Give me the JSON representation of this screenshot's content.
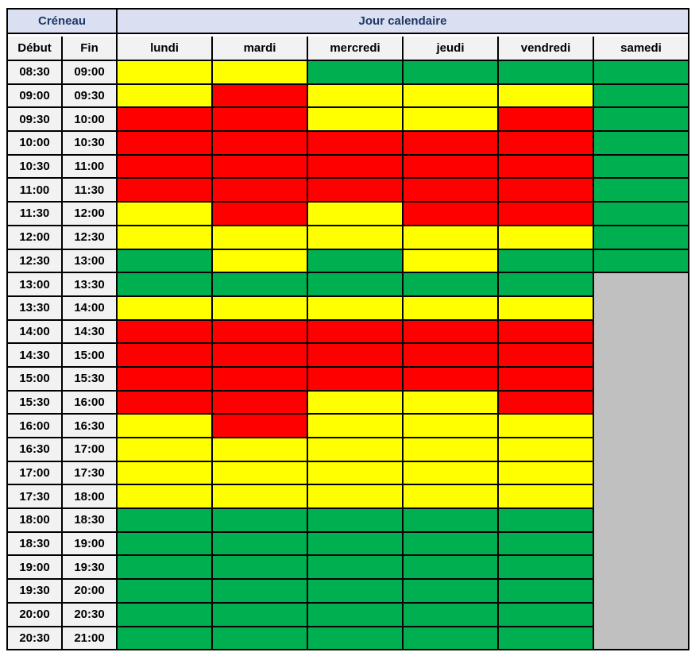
{
  "page": {
    "background": "#FFFFFF"
  },
  "table": {
    "title_creneau": "Créneau",
    "title_jour": "Jour calendaire",
    "col_debut": "Début",
    "col_fin": "Fin",
    "days": [
      "lundi",
      "mardi",
      "mercredi",
      "jeudi",
      "vendredi",
      "samedi"
    ],
    "colors": {
      "Y": "#FFFF00",
      "R": "#FF0000",
      "G": "#00B050",
      "X": "#C0C0C0",
      "title_bg": "#DADFF2",
      "title_text": "#1F3864",
      "header_bg": "#F2F2F2",
      "border": "#000000"
    },
    "rows": [
      {
        "debut": "08:30",
        "fin": "09:00",
        "cells": [
          "Y",
          "Y",
          "G",
          "G",
          "G",
          "G"
        ]
      },
      {
        "debut": "09:00",
        "fin": "09:30",
        "cells": [
          "Y",
          "R",
          "Y",
          "Y",
          "Y",
          "G"
        ]
      },
      {
        "debut": "09:30",
        "fin": "10:00",
        "cells": [
          "R",
          "R",
          "Y",
          "Y",
          "R",
          "G"
        ]
      },
      {
        "debut": "10:00",
        "fin": "10:30",
        "cells": [
          "R",
          "R",
          "R",
          "R",
          "R",
          "G"
        ]
      },
      {
        "debut": "10:30",
        "fin": "11:00",
        "cells": [
          "R",
          "R",
          "R",
          "R",
          "R",
          "G"
        ]
      },
      {
        "debut": "11:00",
        "fin": "11:30",
        "cells": [
          "R",
          "R",
          "R",
          "R",
          "R",
          "G"
        ]
      },
      {
        "debut": "11:30",
        "fin": "12:00",
        "cells": [
          "Y",
          "R",
          "Y",
          "R",
          "R",
          "G"
        ]
      },
      {
        "debut": "12:00",
        "fin": "12:30",
        "cells": [
          "Y",
          "Y",
          "Y",
          "Y",
          "Y",
          "G"
        ]
      },
      {
        "debut": "12:30",
        "fin": "13:00",
        "cells": [
          "G",
          "Y",
          "G",
          "Y",
          "G",
          "G"
        ]
      },
      {
        "debut": "13:00",
        "fin": "13:30",
        "cells": [
          "G",
          "G",
          "G",
          "G",
          "G"
        ]
      },
      {
        "debut": "13:30",
        "fin": "14:00",
        "cells": [
          "Y",
          "Y",
          "Y",
          "Y",
          "Y"
        ]
      },
      {
        "debut": "14:00",
        "fin": "14:30",
        "cells": [
          "R",
          "R",
          "R",
          "R",
          "R"
        ]
      },
      {
        "debut": "14:30",
        "fin": "15:00",
        "cells": [
          "R",
          "R",
          "R",
          "R",
          "R"
        ]
      },
      {
        "debut": "15:00",
        "fin": "15:30",
        "cells": [
          "R",
          "R",
          "R",
          "R",
          "R"
        ]
      },
      {
        "debut": "15:30",
        "fin": "16:00",
        "cells": [
          "R",
          "R",
          "Y",
          "Y",
          "R"
        ]
      },
      {
        "debut": "16:00",
        "fin": "16:30",
        "cells": [
          "Y",
          "R",
          "Y",
          "Y",
          "Y"
        ]
      },
      {
        "debut": "16:30",
        "fin": "17:00",
        "cells": [
          "Y",
          "Y",
          "Y",
          "Y",
          "Y"
        ]
      },
      {
        "debut": "17:00",
        "fin": "17:30",
        "cells": [
          "Y",
          "Y",
          "Y",
          "Y",
          "Y"
        ]
      },
      {
        "debut": "17:30",
        "fin": "18:00",
        "cells": [
          "Y",
          "Y",
          "Y",
          "Y",
          "Y"
        ]
      },
      {
        "debut": "18:00",
        "fin": "18:30",
        "cells": [
          "G",
          "G",
          "G",
          "G",
          "G"
        ]
      },
      {
        "debut": "18:30",
        "fin": "19:00",
        "cells": [
          "G",
          "G",
          "G",
          "G",
          "G"
        ]
      },
      {
        "debut": "19:00",
        "fin": "19:30",
        "cells": [
          "G",
          "G",
          "G",
          "G",
          "G"
        ]
      },
      {
        "debut": "19:30",
        "fin": "20:00",
        "cells": [
          "G",
          "G",
          "G",
          "G",
          "G"
        ]
      },
      {
        "debut": "20:00",
        "fin": "20:30",
        "cells": [
          "G",
          "G",
          "G",
          "G",
          "G"
        ]
      },
      {
        "debut": "20:30",
        "fin": "21:00",
        "cells": [
          "G",
          "G",
          "G",
          "G",
          "G"
        ]
      }
    ],
    "samedi_closed_block": {
      "day": "samedi",
      "start": "13:00",
      "end": "21:00",
      "start_row_index": 9,
      "rows_spanned": 16,
      "color_key": "X"
    }
  },
  "chart_data": {
    "type": "heatmap",
    "title": "Créneau / Jour calendaire",
    "x_categories": [
      "lundi",
      "mardi",
      "mercredi",
      "jeudi",
      "vendredi",
      "samedi"
    ],
    "y_categories": [
      "08:30-09:00",
      "09:00-09:30",
      "09:30-10:00",
      "10:00-10:30",
      "10:30-11:00",
      "11:00-11:30",
      "11:30-12:00",
      "12:00-12:30",
      "12:30-13:00",
      "13:00-13:30",
      "13:30-14:00",
      "14:00-14:30",
      "14:30-15:00",
      "15:00-15:30",
      "15:30-16:00",
      "16:00-16:30",
      "16:30-17:00",
      "17:00-17:30",
      "17:30-18:00",
      "18:00-18:30",
      "18:30-19:00",
      "19:00-19:30",
      "19:30-20:00",
      "20:00-20:30",
      "20:30-21:00"
    ],
    "values": [
      [
        "Y",
        "Y",
        "G",
        "G",
        "G",
        "G"
      ],
      [
        "Y",
        "R",
        "Y",
        "Y",
        "Y",
        "G"
      ],
      [
        "R",
        "R",
        "Y",
        "Y",
        "R",
        "G"
      ],
      [
        "R",
        "R",
        "R",
        "R",
        "R",
        "G"
      ],
      [
        "R",
        "R",
        "R",
        "R",
        "R",
        "G"
      ],
      [
        "R",
        "R",
        "R",
        "R",
        "R",
        "G"
      ],
      [
        "Y",
        "R",
        "Y",
        "R",
        "R",
        "G"
      ],
      [
        "Y",
        "Y",
        "Y",
        "Y",
        "Y",
        "G"
      ],
      [
        "G",
        "Y",
        "G",
        "Y",
        "G",
        "G"
      ],
      [
        "G",
        "G",
        "G",
        "G",
        "G",
        "X"
      ],
      [
        "Y",
        "Y",
        "Y",
        "Y",
        "Y",
        "X"
      ],
      [
        "R",
        "R",
        "R",
        "R",
        "R",
        "X"
      ],
      [
        "R",
        "R",
        "R",
        "R",
        "R",
        "X"
      ],
      [
        "R",
        "R",
        "R",
        "R",
        "R",
        "X"
      ],
      [
        "R",
        "R",
        "Y",
        "Y",
        "R",
        "X"
      ],
      [
        "Y",
        "R",
        "Y",
        "Y",
        "Y",
        "X"
      ],
      [
        "Y",
        "Y",
        "Y",
        "Y",
        "Y",
        "X"
      ],
      [
        "Y",
        "Y",
        "Y",
        "Y",
        "Y",
        "X"
      ],
      [
        "Y",
        "Y",
        "Y",
        "Y",
        "Y",
        "X"
      ],
      [
        "G",
        "G",
        "G",
        "G",
        "G",
        "X"
      ],
      [
        "G",
        "G",
        "G",
        "G",
        "G",
        "X"
      ],
      [
        "G",
        "G",
        "G",
        "G",
        "G",
        "X"
      ],
      [
        "G",
        "G",
        "G",
        "G",
        "G",
        "X"
      ],
      [
        "G",
        "G",
        "G",
        "G",
        "G",
        "X"
      ],
      [
        "G",
        "G",
        "G",
        "G",
        "G",
        "X"
      ]
    ],
    "color_map": {
      "Y": "#FFFF00",
      "R": "#FF0000",
      "G": "#00B050",
      "X": "#C0C0C0"
    },
    "legend_position": "none",
    "grid": true
  }
}
